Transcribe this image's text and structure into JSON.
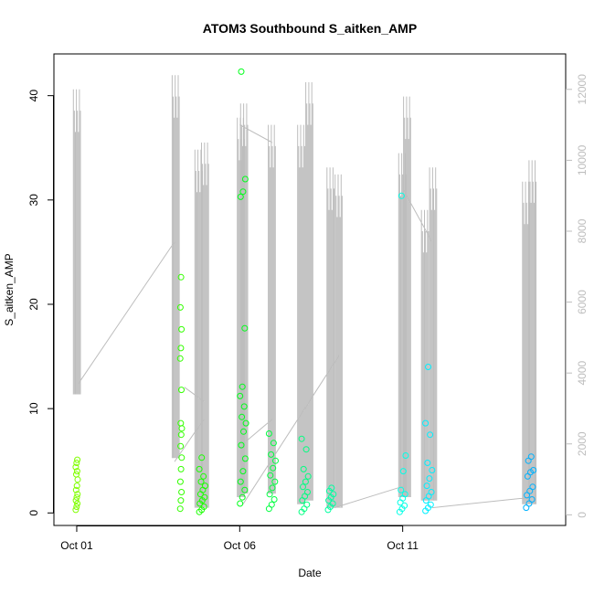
{
  "chart_data": {
    "type": "scatter",
    "title": "ATOM3 Southbound S_aitken_AMP",
    "xlabel": "Date",
    "ylabel": "S_aitken_AMP",
    "x_ticks": [
      "Oct 01",
      "Oct 06",
      "Oct 11"
    ],
    "y_ticks": [
      "0",
      "10",
      "20",
      "30",
      "40"
    ],
    "y2_ticks": [
      "0",
      "2000",
      "4000",
      "6000",
      "8000",
      "10000",
      "12000"
    ],
    "xlim_days": [
      30.3,
      46.0
    ],
    "ylim": [
      -1.2,
      44.0
    ],
    "y2lim": [
      -300,
      13000
    ],
    "grid": false,
    "series": [
      {
        "kind": "points",
        "color_scale": "date (green to blue)",
        "points": [
          {
            "x": "Oct 01",
            "y": [
              0.3,
              0.6,
              0.9,
              1.2,
              1.5,
              1.8,
              2.2,
              2.6,
              3.2,
              3.7,
              4.0,
              4.4,
              4.8,
              5.1
            ]
          },
          {
            "x": "Oct 04",
            "y": [
              0.4,
              1.2,
              2.0,
              3.0,
              4.2,
              5.3,
              6.4,
              7.5,
              8.1,
              8.6,
              11.8,
              14.8,
              15.8,
              17.6,
              19.7,
              22.6
            ]
          },
          {
            "x": "Oct 04 (evening)",
            "y": [
              0.1,
              0.3,
              0.6,
              0.9,
              1.2,
              1.5,
              1.8,
              2.2,
              2.6,
              3.0,
              3.5,
              4.2,
              5.3
            ]
          },
          {
            "x": "Oct 06",
            "y": [
              0.9,
              1.5,
              2.2,
              3.0,
              4.0,
              5.2,
              6.5,
              7.8,
              8.6,
              9.2,
              10.2,
              11.2,
              12.1,
              17.7,
              30.3,
              30.8,
              32.0,
              42.3
            ]
          },
          {
            "x": "Oct 07",
            "y": [
              0.4,
              0.8,
              1.3,
              1.8,
              2.4,
              3.0,
              3.6,
              4.3,
              5.0,
              5.6,
              6.7,
              7.6
            ]
          },
          {
            "x": "Oct 08",
            "y": [
              0.1,
              0.4,
              0.8,
              1.2,
              1.6,
              2.0,
              2.5,
              3.0,
              3.5,
              4.2,
              6.1,
              7.1
            ]
          },
          {
            "x": "Oct 09",
            "y": [
              0.3,
              0.6,
              0.9,
              1.2,
              1.5,
              1.8,
              2.1,
              2.4
            ]
          },
          {
            "x": "Oct 11",
            "y": [
              0.1,
              0.4,
              0.7,
              1.0,
              1.4,
              1.8,
              2.2,
              4.0,
              5.5,
              30.4
            ]
          },
          {
            "x": "Oct 12",
            "y": [
              0.2,
              0.5,
              0.8,
              1.2,
              1.6,
              2.0,
              2.6,
              3.3,
              4.1,
              4.8,
              7.5,
              8.6,
              14.0
            ]
          },
          {
            "x": "Oct 15",
            "y": [
              0.5,
              0.9,
              1.3,
              1.7,
              2.1,
              2.5,
              3.5,
              3.9,
              4.1,
              5.0,
              5.4
            ]
          }
        ]
      },
      {
        "kind": "line",
        "axis": "right",
        "color": "#bdbdbd",
        "values_note": "secondary measurement on right axis"
      }
    ]
  }
}
